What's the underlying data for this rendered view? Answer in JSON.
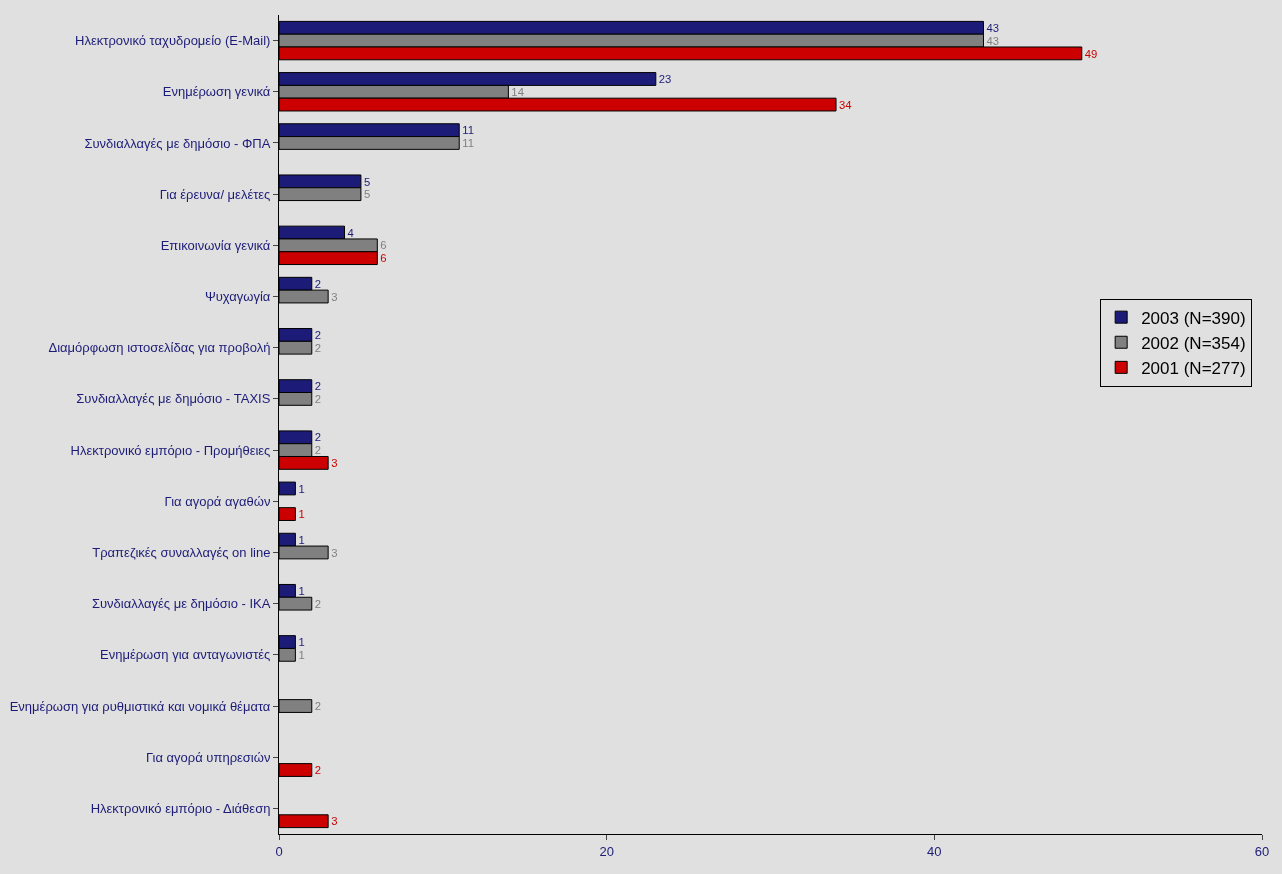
{
  "chart_data": {
    "type": "bar",
    "orientation": "horizontal",
    "categories": [
      "Ηλεκτρονικό ταχυδρομείο (E-Mail)",
      "Ενημέρωση γενικά",
      "Συνδιαλλαγές με δημόσιο - ΦΠΑ",
      "Για έρευνα/ μελέτες",
      "Επικοινωνία γενικά",
      "Ψυχαγωγία",
      "Διαμόρφωση ιστοσελίδας για προβολή",
      "Συνδιαλλαγές με δημόσιο - TAXIS",
      "Ηλεκτρονικό εμπόριο - Προμήθειες",
      "Για αγορά αγαθών",
      "Τραπεζικές συναλλαγές on line",
      "Συνδιαλλαγές με δημόσιο - ΙΚΑ",
      "Ενημέρωση για ανταγωνιστές",
      "Ενημέρωση για ρυθμιστικά και νομικά θέματα",
      "Για αγορά υπηρεσιών",
      "Ηλεκτρονικό εμπόριο - Διάθεση"
    ],
    "series": [
      {
        "name": "2003 (N=390)",
        "color": "#1c1c78",
        "values": [
          43,
          23,
          11,
          5,
          4,
          2,
          2,
          2,
          2,
          1,
          1,
          1,
          1,
          null,
          null,
          null
        ]
      },
      {
        "name": "2002 (N=354)",
        "color": "#808080",
        "values": [
          43,
          14,
          11,
          5,
          6,
          3,
          2,
          2,
          2,
          null,
          3,
          2,
          1,
          2,
          null,
          null
        ]
      },
      {
        "name": "2001 (N=277)",
        "color": "#cc0000",
        "values": [
          49,
          34,
          null,
          null,
          6,
          null,
          null,
          null,
          3,
          1,
          null,
          null,
          null,
          null,
          2,
          3
        ]
      }
    ],
    "xlim": [
      0,
      60
    ],
    "xticks": [
      0,
      20,
      40,
      60
    ],
    "data_labels": true,
    "legend": "right",
    "grid": false
  }
}
